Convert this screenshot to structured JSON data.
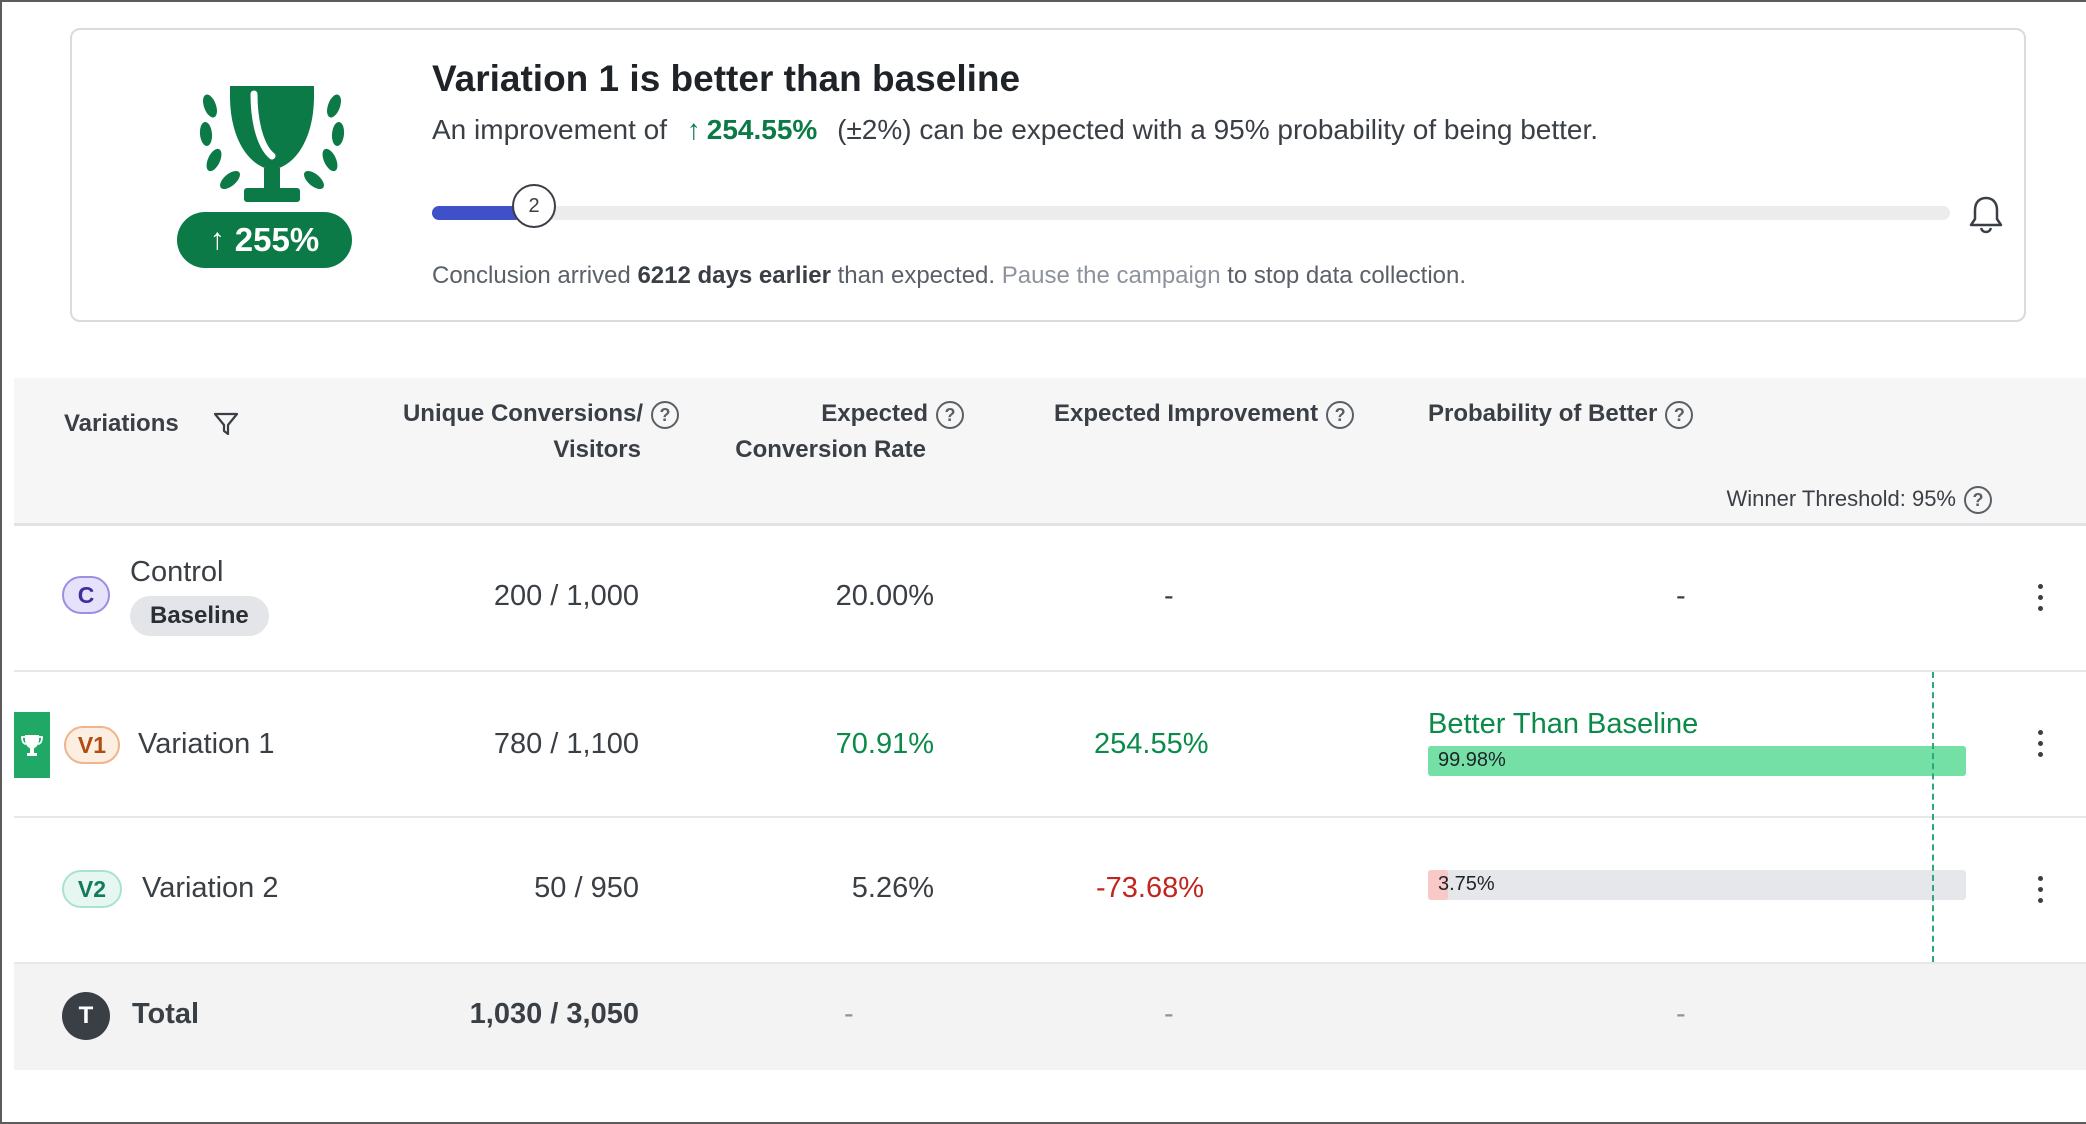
{
  "summary": {
    "badge_uplift": "255%",
    "title": "Variation 1 is better than baseline",
    "desc_prefix": "An improvement of",
    "desc_improvement": "254.55%",
    "desc_suffix": "(±2%) can be expected with a 95% probability of being better.",
    "progress_step": "2",
    "progress_fraction": 0.053,
    "conclusion_prefix": "Conclusion arrived",
    "conclusion_bold": "6212 days earlier",
    "conclusion_mid": "than expected.",
    "conclusion_link": "Pause the campaign",
    "conclusion_suffix": "to stop data collection.",
    "accent_color": "#0b7a46",
    "progress_color": "#3f51c9"
  },
  "table": {
    "headers": {
      "variations": "Variations",
      "conversions_line1": "Unique Conversions/",
      "conversions_line2": "Visitors",
      "rate_line1": "Expected",
      "rate_line2": "Conversion Rate",
      "improvement": "Expected Improvement",
      "probability": "Probability of Better",
      "help_glyph": "?",
      "threshold": "Winner Threshold: 95%"
    },
    "rows": [
      {
        "badge": "C",
        "name": "Control",
        "tag": "Baseline",
        "conversions": "200 / 1,000",
        "rate": "20.00%",
        "improvement": "-",
        "probability": "-"
      },
      {
        "badge": "V1",
        "name": "Variation 1",
        "conversions": "780 / 1,100",
        "rate": "70.91%",
        "improvement": "254.55%",
        "probability_title": "Better Than Baseline",
        "probability": "99.98%",
        "probability_value": 0.9998,
        "bar_color": "#74e0a6"
      },
      {
        "badge": "V2",
        "name": "Variation 2",
        "conversions": "50 / 950",
        "rate": "5.26%",
        "improvement": "-73.68%",
        "probability": "3.75%",
        "probability_value": 0.0375,
        "bar_color": "#f8c9c6"
      }
    ],
    "total": {
      "badge": "T",
      "name": "Total",
      "conversions": "1,030 / 3,050",
      "rate": "-",
      "improvement": "-",
      "probability": "-"
    }
  },
  "icons": [
    "trophy-icon",
    "bell-icon",
    "filter-icon",
    "help-icon",
    "kebab-menu-icon",
    "winner-trophy-icon"
  ]
}
